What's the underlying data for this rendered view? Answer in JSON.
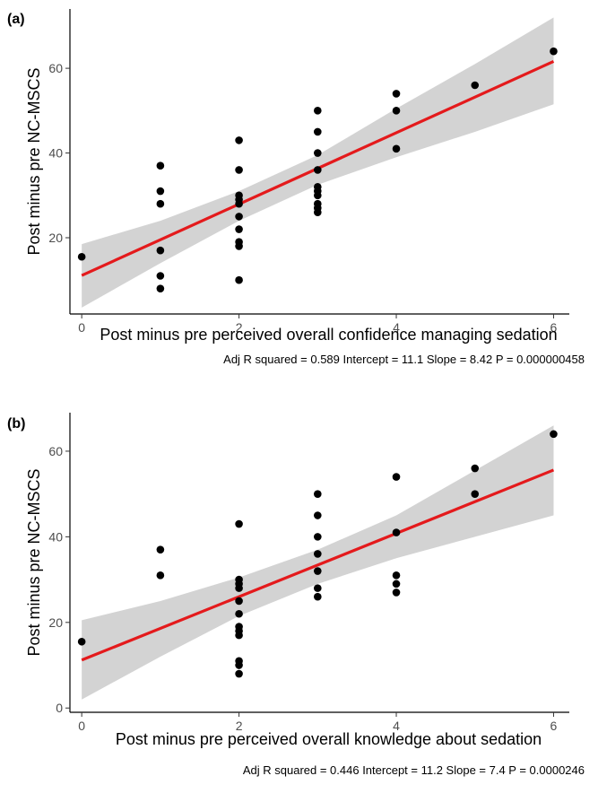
{
  "chart_data": [
    {
      "type": "scatter",
      "panel_label": "(a)",
      "xlabel": "Post minus pre perceived overall confidence managing sedation",
      "ylabel": "Post minus pre NC-MSCS",
      "stats": "Adj R squared =  0.589 Intercept = 11.1  Slope = 8.42  P = 0.000000458",
      "xlim": [
        -0.15,
        6.2
      ],
      "ylim": [
        2,
        74
      ],
      "xticks": [
        0,
        2,
        4,
        6
      ],
      "yticks": [
        20,
        40,
        60
      ],
      "grid": false,
      "points": [
        [
          0,
          15.5
        ],
        [
          1,
          37
        ],
        [
          1,
          31
        ],
        [
          1,
          28
        ],
        [
          1,
          17
        ],
        [
          1,
          11
        ],
        [
          1,
          8
        ],
        [
          2,
          43
        ],
        [
          2,
          36
        ],
        [
          2,
          30
        ],
        [
          2,
          29
        ],
        [
          2,
          28
        ],
        [
          2,
          25
        ],
        [
          2,
          22
        ],
        [
          2,
          19
        ],
        [
          2,
          18
        ],
        [
          2,
          10
        ],
        [
          3,
          50
        ],
        [
          3,
          45
        ],
        [
          3,
          40
        ],
        [
          3,
          36
        ],
        [
          3,
          32
        ],
        [
          3,
          31
        ],
        [
          3,
          30
        ],
        [
          3,
          28
        ],
        [
          3,
          27
        ],
        [
          3,
          26
        ],
        [
          4,
          54
        ],
        [
          4,
          50
        ],
        [
          4,
          41
        ],
        [
          5,
          56
        ],
        [
          6,
          64
        ]
      ],
      "regression": {
        "intercept": 11.1,
        "slope": 8.42,
        "color": "#e41a1c"
      },
      "confidence_band": {
        "x": [
          0,
          1,
          2,
          3,
          4,
          5,
          6
        ],
        "lower": [
          3.5,
          14,
          24,
          32.5,
          39,
          45,
          51.5
        ],
        "upper": [
          18.5,
          24,
          31,
          39.5,
          50.5,
          61,
          72
        ],
        "color": "#d3d3d3"
      }
    },
    {
      "type": "scatter",
      "panel_label": "(b)",
      "xlabel": "Post minus pre perceived overall knowledge about sedation",
      "ylabel": "Post minus pre NC-MSCS",
      "stats": "Adj R squared =  0.446 Intercept = 11.2  Slope = 7.4  P = 0.0000246",
      "xlim": [
        -0.15,
        6.2
      ],
      "ylim": [
        -1,
        69
      ],
      "xticks": [
        0,
        2,
        4,
        6
      ],
      "yticks": [
        0,
        20,
        40,
        60
      ],
      "grid": false,
      "points": [
        [
          0,
          15.5
        ],
        [
          1,
          37
        ],
        [
          1,
          31
        ],
        [
          2,
          43
        ],
        [
          2,
          30
        ],
        [
          2,
          29
        ],
        [
          2,
          28
        ],
        [
          2,
          25
        ],
        [
          2,
          22
        ],
        [
          2,
          19
        ],
        [
          2,
          18
        ],
        [
          2,
          17
        ],
        [
          2,
          11
        ],
        [
          2,
          10
        ],
        [
          2,
          8
        ],
        [
          3,
          50
        ],
        [
          3,
          45
        ],
        [
          3,
          40
        ],
        [
          3,
          36
        ],
        [
          3,
          32
        ],
        [
          3,
          28
        ],
        [
          3,
          26
        ],
        [
          4,
          54
        ],
        [
          4,
          41
        ],
        [
          4,
          31
        ],
        [
          4,
          29
        ],
        [
          4,
          27
        ],
        [
          5,
          56
        ],
        [
          5,
          50
        ],
        [
          6,
          64
        ]
      ],
      "regression": {
        "intercept": 11.2,
        "slope": 7.4,
        "color": "#e41a1c"
      },
      "confidence_band": {
        "x": [
          0,
          1,
          2,
          3,
          4,
          5,
          6
        ],
        "lower": [
          2,
          12,
          21.5,
          29,
          35,
          40,
          45
        ],
        "upper": [
          20.5,
          25,
          30.5,
          37,
          45,
          55.5,
          66
        ],
        "color": "#d3d3d3"
      }
    }
  ]
}
